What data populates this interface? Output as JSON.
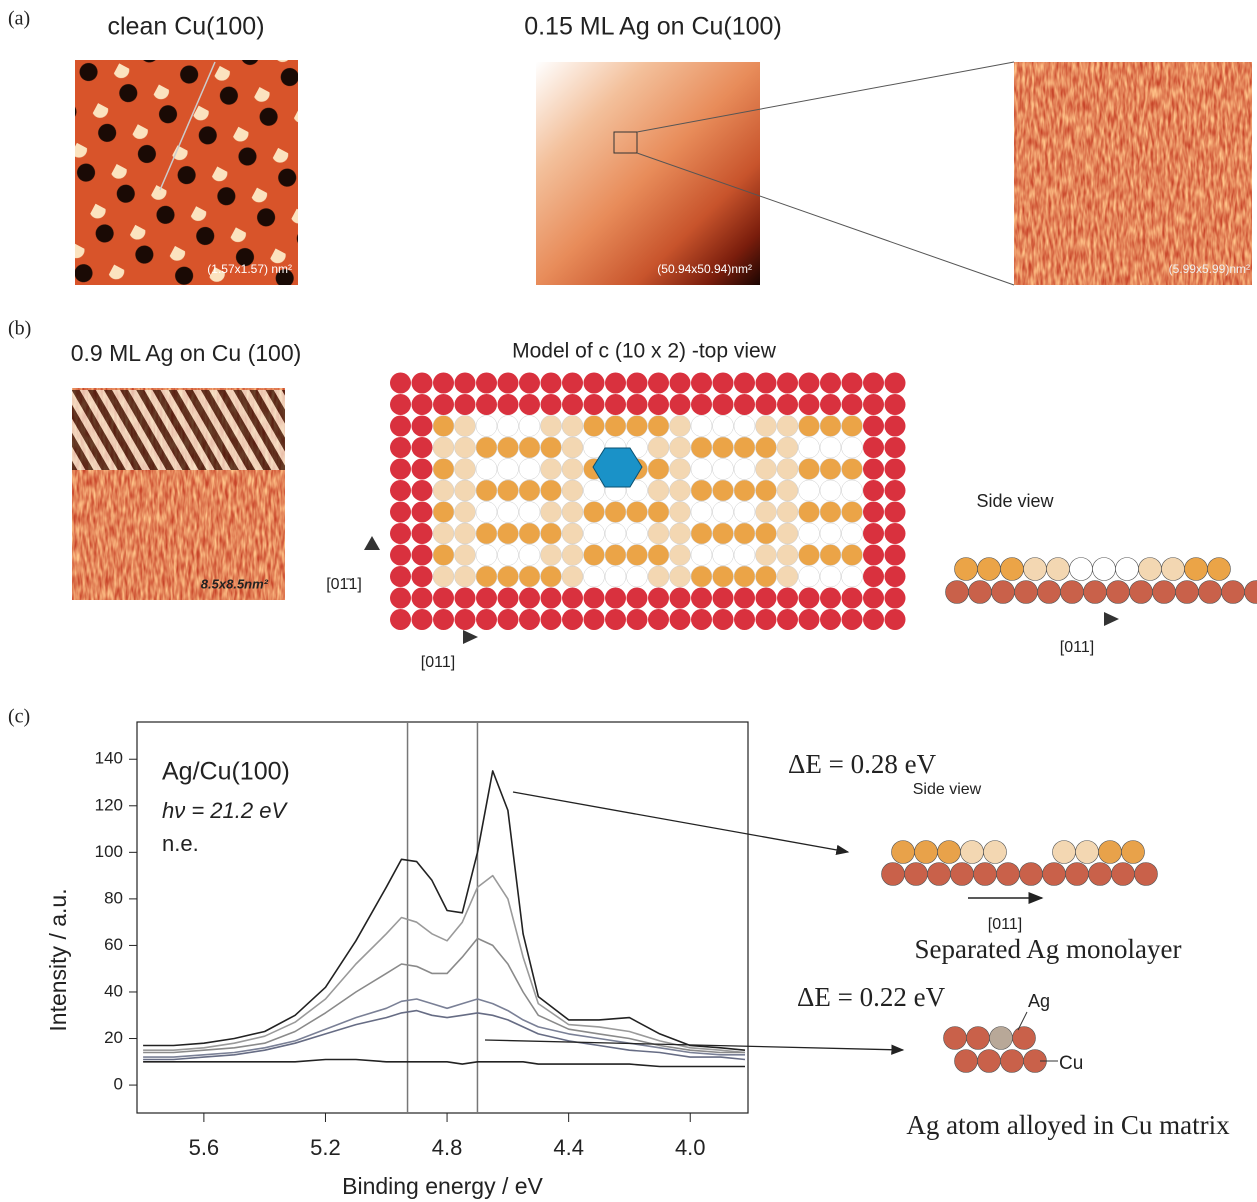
{
  "panel_labels": [
    "(a)",
    "(b)",
    "(c)"
  ],
  "panel_a": {
    "left_title": "clean Cu(100)",
    "middle_title": "0.15 ML Ag on Cu(100)",
    "left_scale": "(1.57x1.57) nm²",
    "middle_scale": "(50.94x50.94)nm²",
    "right_scale": "(5.99x5.99)nm²"
  },
  "panel_b": {
    "title": "0.9 ML Ag on Cu (100)",
    "scale": "8.5x8.5nm²",
    "model_title": "Model of c (10 x 2) -top view",
    "direction_vertical": "[01̄1]",
    "direction_horizontal": "[011]",
    "side_title": "Side view",
    "side_direction": "[011]"
  },
  "panel_c_models": {
    "delta_1": "ΔE = 0.28 eV",
    "side_title": "Side view",
    "direction": "[011]",
    "caption_1": "Separated Ag monolayer",
    "delta_2": "ΔE = 0.22 eV",
    "ag_label": "Ag",
    "cu_label": "Cu",
    "caption_2": "Ag atom alloyed in Cu matrix"
  },
  "chart_data": {
    "type": "line",
    "x_label": "Binding energy / eV",
    "y_label": "Intensity / a.u.",
    "annotations": [
      "Ag/Cu(100)",
      "hν = 21.2 eV",
      "n.e."
    ],
    "vlines": [
      4.93,
      4.7
    ],
    "xlim": [
      5.82,
      3.81
    ],
    "ylim": [
      -12,
      156
    ],
    "xticks": [
      5.6,
      5.2,
      4.8,
      4.4,
      {
        "value": 4,
        "label": "4.0"
      }
    ],
    "yticks": [
      0,
      20,
      40,
      60,
      80,
      100,
      120,
      140
    ],
    "x": [
      5.8,
      5.7,
      5.6,
      5.5,
      5.4,
      5.3,
      5.2,
      5.1,
      5.0,
      4.95,
      4.9,
      4.85,
      4.8,
      4.75,
      4.7,
      4.65,
      4.6,
      4.55,
      4.5,
      4.4,
      4.3,
      4.2,
      4.1,
      4.0,
      3.9,
      3.82
    ],
    "series": [
      {
        "color": "#222222",
        "values": [
          17,
          17,
          18,
          20,
          23,
          30,
          42,
          62,
          85,
          97,
          96,
          88,
          75,
          74,
          100,
          135,
          118,
          65,
          38,
          28,
          28,
          29,
          22,
          17,
          16,
          15
        ]
      },
      {
        "color": "#9a9a9a",
        "values": [
          15,
          15,
          16,
          18,
          21,
          27,
          37,
          52,
          65,
          72,
          70,
          65,
          62,
          70,
          85,
          90,
          80,
          55,
          35,
          26,
          25,
          23,
          19,
          16,
          15,
          14
        ]
      },
      {
        "color": "#8a8a8a",
        "values": [
          14,
          14,
          15,
          16,
          18,
          23,
          31,
          40,
          48,
          52,
          51,
          48,
          48,
          55,
          63,
          60,
          52,
          40,
          30,
          24,
          22,
          20,
          17,
          15,
          14,
          14
        ]
      },
      {
        "color": "#7a8096",
        "values": [
          12,
          12,
          13,
          14,
          16,
          19,
          24,
          29,
          33,
          36,
          37,
          35,
          33,
          35,
          37,
          35,
          32,
          28,
          25,
          22,
          20,
          18,
          16,
          14,
          13,
          13
        ]
      },
      {
        "color": "#666c84",
        "values": [
          11,
          11,
          12,
          13,
          15,
          18,
          22,
          26,
          29,
          31,
          32,
          30,
          29,
          30,
          31,
          30,
          28,
          25,
          22,
          19,
          17,
          15,
          14,
          12,
          12,
          11
        ]
      },
      {
        "color": "#222222",
        "values": [
          10,
          10,
          10,
          10,
          10,
          10,
          11,
          11,
          10,
          10,
          10,
          10,
          10,
          9,
          10,
          10,
          10,
          10,
          9,
          9,
          9,
          9,
          8,
          8,
          8,
          8
        ]
      }
    ]
  }
}
